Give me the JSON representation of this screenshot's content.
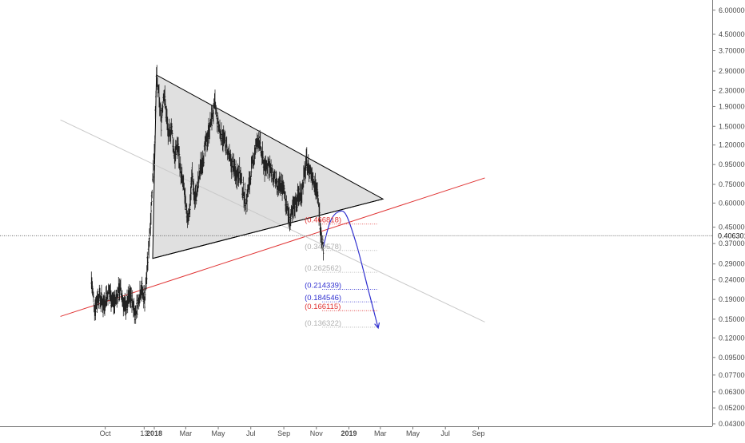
{
  "chart_data": {
    "type": "line",
    "y_scale": "log",
    "ylim": [
      0.043,
      6.4
    ],
    "y_ticks": [
      "6.000000",
      "4.500000",
      "3.700000",
      "2.900000",
      "2.300000",
      "1.900000",
      "1.500000",
      "1.200000",
      "0.950000",
      "0.750000",
      "0.600000",
      "0.450000",
      "0.370000",
      "0.290000",
      "0.240000",
      "0.190000",
      "0.150000",
      "0.120000",
      "0.095000",
      "0.077000",
      "0.063000",
      "0.052000",
      "0.043000"
    ],
    "x_ticks": [
      {
        "label": "Oct",
        "day": -92,
        "bold": false
      },
      {
        "label": "13",
        "day": -19,
        "bold": false
      },
      {
        "label": "2018",
        "day": 0,
        "bold": true
      },
      {
        "label": "Mar",
        "day": 59,
        "bold": false
      },
      {
        "label": "May",
        "day": 120,
        "bold": false
      },
      {
        "label": "Jul",
        "day": 181,
        "bold": false
      },
      {
        "label": "Sep",
        "day": 243,
        "bold": false
      },
      {
        "label": "Nov",
        "day": 304,
        "bold": false
      },
      {
        "label": "2019",
        "day": 365,
        "bold": true
      },
      {
        "label": "Mar",
        "day": 424,
        "bold": false
      },
      {
        "label": "May",
        "day": 485,
        "bold": false
      },
      {
        "label": "Jul",
        "day": 546,
        "bold": false
      },
      {
        "label": "Sep",
        "day": 608,
        "bold": false
      }
    ],
    "current_price": {
      "label": "0.406301",
      "value": 0.406301,
      "color": "#555555"
    },
    "price_anchors": [
      [
        -118,
        0.24
      ],
      [
        -112,
        0.17
      ],
      [
        -105,
        0.2
      ],
      [
        -95,
        0.18
      ],
      [
        -85,
        0.21
      ],
      [
        -75,
        0.18
      ],
      [
        -65,
        0.22
      ],
      [
        -55,
        0.17
      ],
      [
        -45,
        0.2
      ],
      [
        -35,
        0.16
      ],
      [
        -25,
        0.22
      ],
      [
        -18,
        0.19
      ],
      [
        -12,
        0.3
      ],
      [
        -6,
        0.55
      ],
      [
        -2,
        0.9
      ],
      [
        1,
        1.3
      ],
      [
        4,
        2.7
      ],
      [
        8,
        2.2
      ],
      [
        13,
        1.6
      ],
      [
        18,
        2.3
      ],
      [
        22,
        1.8
      ],
      [
        27,
        1.3
      ],
      [
        32,
        1.5
      ],
      [
        38,
        1.05
      ],
      [
        44,
        1.2
      ],
      [
        50,
        0.85
      ],
      [
        56,
        0.7
      ],
      [
        61,
        0.5
      ],
      [
        66,
        0.55
      ],
      [
        71,
        0.85
      ],
      [
        76,
        0.62
      ],
      [
        81,
        0.7
      ],
      [
        86,
        0.9
      ],
      [
        92,
        1.05
      ],
      [
        98,
        1.25
      ],
      [
        104,
        1.5
      ],
      [
        110,
        1.75
      ],
      [
        114,
        1.95
      ],
      [
        118,
        1.6
      ],
      [
        124,
        1.4
      ],
      [
        130,
        1.3
      ],
      [
        136,
        1.15
      ],
      [
        142,
        1.0
      ],
      [
        148,
        0.92
      ],
      [
        154,
        0.85
      ],
      [
        160,
        0.88
      ],
      [
        166,
        0.7
      ],
      [
        172,
        0.6
      ],
      [
        178,
        0.75
      ],
      [
        184,
        0.95
      ],
      [
        190,
        1.15
      ],
      [
        196,
        1.3
      ],
      [
        202,
        1.05
      ],
      [
        208,
        0.9
      ],
      [
        214,
        0.98
      ],
      [
        220,
        0.85
      ],
      [
        226,
        0.8
      ],
      [
        232,
        0.7
      ],
      [
        238,
        0.75
      ],
      [
        244,
        0.68
      ],
      [
        250,
        0.55
      ],
      [
        254,
        0.48
      ],
      [
        258,
        0.52
      ],
      [
        264,
        0.6
      ],
      [
        270,
        0.65
      ],
      [
        276,
        0.68
      ],
      [
        282,
        0.85
      ],
      [
        286,
        0.98
      ],
      [
        290,
        0.9
      ],
      [
        296,
        0.85
      ],
      [
        302,
        0.75
      ],
      [
        306,
        0.65
      ],
      [
        309,
        0.55
      ],
      [
        312,
        0.45
      ],
      [
        315,
        0.38
      ],
      [
        317,
        0.36
      ]
    ],
    "triangle": {
      "points": [
        [
          -3,
          0.31
        ],
        [
          4,
          2.77
        ],
        [
          429,
          0.63
        ]
      ],
      "fill": "#e0e0e0",
      "stroke": "#000000"
    },
    "trendlines": [
      {
        "points": [
          [
            -176,
            0.155
          ],
          [
            620,
            0.81
          ]
        ],
        "color": "#e03434"
      },
      {
        "points": [
          [
            -176,
            1.62
          ],
          [
            620,
            0.145
          ]
        ],
        "color": "#c9c9c9"
      },
      {
        "points": [
          [
            -3,
            0.31
          ],
          [
            429,
            0.63
          ]
        ],
        "color": "#000000"
      }
    ],
    "projection": {
      "points": [
        [
          317,
          0.355
        ],
        [
          330,
          0.48
        ],
        [
          345,
          0.54
        ],
        [
          360,
          0.52
        ],
        [
          380,
          0.36
        ],
        [
          402,
          0.21
        ],
        [
          420,
          0.135
        ]
      ],
      "color": "#3030d0"
    },
    "fib_levels": [
      {
        "label": "(0.466818)",
        "value": 0.466818,
        "color": "#e03434"
      },
      {
        "label": "(0.340578)",
        "value": 0.340578,
        "color": "#b0b0b0"
      },
      {
        "label": "(0.262562)",
        "value": 0.262562,
        "color": "#b0b0b0"
      },
      {
        "label": "(0.214339)",
        "value": 0.214339,
        "color": "#3030d0"
      },
      {
        "label": "(0.184546)",
        "value": 0.184546,
        "color": "#3030d0"
      },
      {
        "label": "(0.166115)",
        "value": 0.166115,
        "color": "#e03434"
      },
      {
        "label": "(0.136322)",
        "value": 0.136322,
        "color": "#b0b0b0"
      }
    ],
    "fib_x_range": [
      315,
      420
    ],
    "grid": false
  }
}
